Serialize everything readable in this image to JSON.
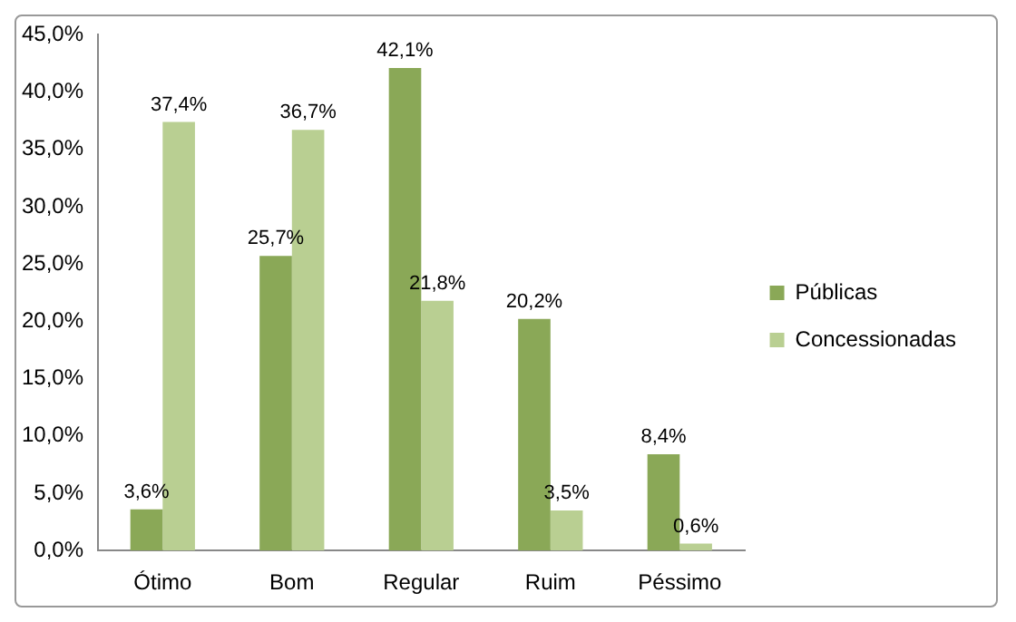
{
  "chart_data": {
    "type": "bar",
    "categories": [
      "Ótimo",
      "Bom",
      "Regular",
      "Ruim",
      "Péssimo"
    ],
    "series": [
      {
        "name": "Públicas",
        "color": "#8aa857",
        "values": [
          3.6,
          25.7,
          42.1,
          20.2,
          8.4
        ],
        "value_labels": [
          "3,6%",
          "25,7%",
          "42,1%",
          "20,2%",
          "8,4%"
        ]
      },
      {
        "name": "Concessionadas",
        "color": "#b9cf92",
        "values": [
          37.4,
          36.7,
          21.8,
          3.5,
          0.6
        ],
        "value_labels": [
          "37,4%",
          "36,7%",
          "21,8%",
          "3,5%",
          "0,6%"
        ]
      }
    ],
    "ylim": [
      0,
      45
    ],
    "yticks": [
      {
        "value": 0,
        "label": "0,0%"
      },
      {
        "value": 5,
        "label": "5,0%"
      },
      {
        "value": 10,
        "label": "10,0%"
      },
      {
        "value": 15,
        "label": "15,0%"
      },
      {
        "value": 20,
        "label": "20,0%"
      },
      {
        "value": 25,
        "label": "25,0%"
      },
      {
        "value": 30,
        "label": "30,0%"
      },
      {
        "value": 35,
        "label": "35,0%"
      },
      {
        "value": 40,
        "label": "40,0%"
      },
      {
        "value": 45,
        "label": "45,0%"
      }
    ],
    "grid": false,
    "legend": "right"
  }
}
